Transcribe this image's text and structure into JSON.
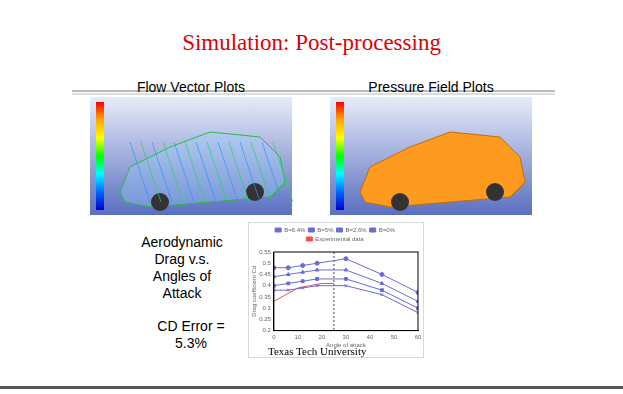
{
  "slide": {
    "title": "Simulation: Post-processing",
    "panels": [
      {
        "heading": "Flow Vector Plots"
      },
      {
        "heading": "Pressure Field Plots"
      }
    ],
    "caption": "Aerodynamic Drag v.s. Angles of Attack",
    "note": "CD Error = 5.3%",
    "watermark": "Texas Tech University"
  },
  "chart_data": {
    "type": "line",
    "x_label": "Angle of attack",
    "y_label": "Drag coefficient Cd",
    "x": [
      0,
      6,
      12,
      18,
      30,
      45,
      60
    ],
    "series": [
      {
        "name": "B=6.4%",
        "color": "#6a6ad8",
        "marker": "circle",
        "values": [
          0.48,
          0.48,
          0.49,
          0.5,
          0.52,
          0.45,
          0.37
        ]
      },
      {
        "name": "B=5%",
        "color": "#6a6ad8",
        "marker": "triangle",
        "values": [
          0.44,
          0.45,
          0.46,
          0.47,
          0.47,
          0.41,
          0.33
        ]
      },
      {
        "name": "B=2.6%",
        "color": "#6a6ad8",
        "marker": "rect",
        "values": [
          0.4,
          0.41,
          0.42,
          0.43,
          0.43,
          0.38,
          0.3
        ]
      },
      {
        "name": "B=0%",
        "color": "#6a6ad8",
        "marker": "crossRot",
        "values": [
          0.38,
          0.38,
          0.39,
          0.4,
          0.4,
          0.36,
          0.28
        ]
      },
      {
        "name": "Experimental data",
        "color": "#ff4a4a",
        "marker": "none",
        "x": [
          0,
          5,
          10,
          15,
          20,
          25
        ],
        "values": [
          0.33,
          0.36,
          0.39,
          0.4,
          0.41,
          0.41
        ]
      }
    ],
    "reference_x": 25,
    "xlim": [
      0,
      60
    ],
    "xticks": [
      0,
      10,
      20,
      30,
      40,
      50,
      60
    ],
    "ylim": [
      0.2,
      0.55
    ],
    "yticks": [
      0.2,
      0.25,
      0.3,
      0.35,
      0.4,
      0.45,
      0.5,
      0.55
    ],
    "grid": false,
    "legend": "top"
  }
}
